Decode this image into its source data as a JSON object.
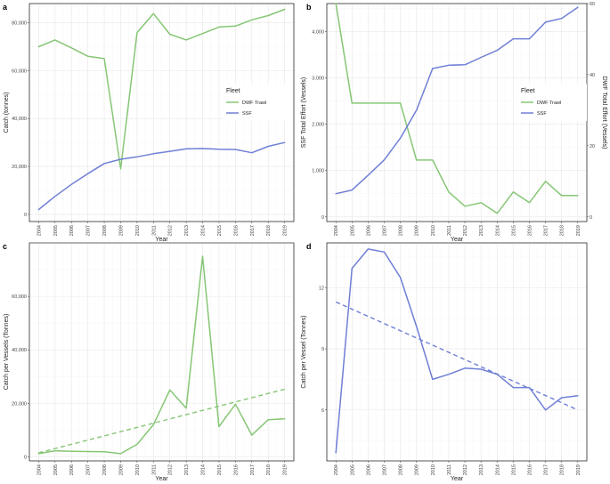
{
  "colors": {
    "green": "#86c675",
    "blue": "#6f7fd6"
  },
  "chart_data": [
    {
      "panel": "a",
      "type": "line",
      "xlabel": "Year",
      "ylabel": "Catch (tonnes)",
      "x": [
        2004,
        2005,
        2006,
        2007,
        2008,
        2009,
        2010,
        2011,
        2012,
        2013,
        2014,
        2015,
        2016,
        2017,
        2018,
        2019
      ],
      "ylim": [
        -3000,
        88000
      ],
      "yticks": [
        0,
        20000,
        40000,
        60000,
        80000
      ],
      "ytick_labels": [
        "0",
        "20,000",
        "40,000",
        "60,000",
        "80,000"
      ],
      "legend": {
        "title": "Fleet",
        "position": "right"
      },
      "series": [
        {
          "name": "DWF Trawl",
          "color": "green",
          "values": [
            70000,
            72800,
            69500,
            66000,
            65000,
            19000,
            75800,
            83800,
            75200,
            72800,
            75500,
            78200,
            78600,
            81200,
            83000,
            85600
          ]
        },
        {
          "name": "SSF",
          "color": "blue",
          "values": [
            2000,
            7500,
            12500,
            17000,
            21200,
            23000,
            24000,
            25300,
            26300,
            27400,
            27500,
            27200,
            27100,
            25700,
            28400,
            30000
          ]
        }
      ]
    },
    {
      "panel": "b",
      "type": "line",
      "xlabel": "Year",
      "ylabel": "SSF Total Effort (Vessels)",
      "ylabel_right": "DWF Total Effort (Vessels)",
      "x": [
        2004,
        2005,
        2006,
        2007,
        2008,
        2009,
        2010,
        2011,
        2012,
        2013,
        2014,
        2015,
        2016,
        2017,
        2018,
        2019
      ],
      "ylim": [
        -100,
        4600
      ],
      "yticks": [
        0,
        1000,
        2000,
        3000,
        4000
      ],
      "ytick_labels": [
        "0",
        "1,000",
        "2,000",
        "3,000",
        "4,000"
      ],
      "ylim_right": [
        -1.3,
        60
      ],
      "yticks_right": [
        0,
        20,
        40,
        60
      ],
      "legend": {
        "title": "Fleet",
        "position": "right"
      },
      "series": [
        {
          "name": "DWF Trawl",
          "axis": "right",
          "color": "green",
          "values": [
            60,
            32,
            32,
            32,
            32,
            16,
            16,
            7,
            3,
            4,
            1,
            7,
            4,
            10,
            6,
            6
          ]
        },
        {
          "name": "SSF",
          "axis": "left",
          "color": "blue",
          "values": [
            500,
            580,
            900,
            1230,
            1700,
            2300,
            3200,
            3270,
            3280,
            3440,
            3590,
            3840,
            3840,
            4200,
            4280,
            4520
          ]
        }
      ]
    },
    {
      "panel": "c",
      "type": "line",
      "xlabel": "Year",
      "ylabel": "Catch per Vessels (Tonnes)",
      "x": [
        2004,
        2005,
        2006,
        2007,
        2008,
        2009,
        2010,
        2011,
        2012,
        2013,
        2014,
        2015,
        2016,
        2017,
        2018,
        2019
      ],
      "ylim": [
        -1500,
        80000
      ],
      "yticks": [
        0,
        20000,
        40000,
        60000
      ],
      "ytick_labels": [
        "0",
        "20,000",
        "40,000",
        "60,000"
      ],
      "series": [
        {
          "name": "",
          "color": "green",
          "values": [
            1200,
            2300,
            2100,
            2000,
            1900,
            1200,
            4700,
            12000,
            25000,
            18200,
            75000,
            11300,
            19700,
            8100,
            13900,
            14200
          ]
        }
      ],
      "trend": {
        "color": "green",
        "from": [
          2004,
          1500
        ],
        "to": [
          2019,
          25300
        ]
      }
    },
    {
      "panel": "d",
      "type": "line",
      "xlabel": "Year",
      "ylabel": "Catch per Vessel (Tonnes)",
      "x": [
        2004,
        2005,
        2006,
        2007,
        2008,
        2009,
        2010,
        2011,
        2012,
        2013,
        2014,
        2015,
        2016,
        2017,
        2018,
        2019
      ],
      "ylim": [
        3.5,
        14.2
      ],
      "yticks": [
        6,
        9,
        12
      ],
      "ytick_labels": [
        "6",
        "9",
        "12"
      ],
      "series": [
        {
          "name": "",
          "color": "blue",
          "values": [
            3.9,
            12.95,
            13.9,
            13.75,
            12.5,
            10.1,
            7.5,
            7.75,
            8.05,
            8.0,
            7.75,
            7.1,
            7.1,
            6.0,
            6.6,
            6.7
          ]
        }
      ],
      "trend": {
        "color": "blue",
        "from": [
          2004,
          11.3
        ],
        "to": [
          2019,
          6.0
        ]
      }
    }
  ]
}
